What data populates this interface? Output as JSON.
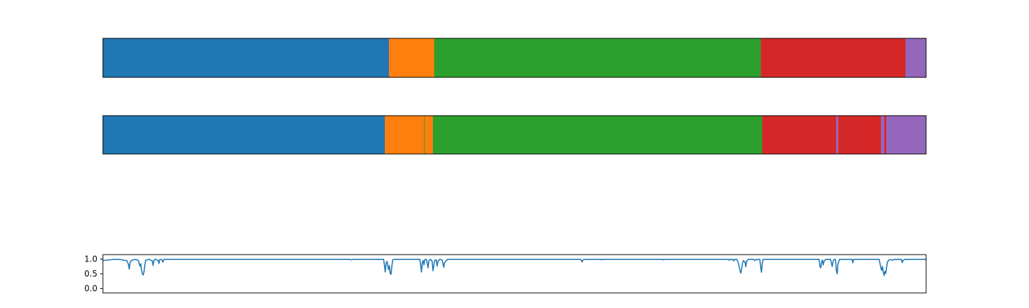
{
  "chart_data": [
    {
      "type": "bar",
      "orientation": "horizontal-stacked",
      "title": "",
      "xlabel": "",
      "ylabel": "",
      "axes_ticks": false,
      "xlim": [
        0,
        1
      ],
      "segments": [
        {
          "label_id": 0,
          "start": 0.0,
          "end": 0.3475,
          "color": "#1f77b4"
        },
        {
          "label_id": 1,
          "start": 0.3475,
          "end": 0.4025,
          "color": "#ff7f0e"
        },
        {
          "label_id": 2,
          "start": 0.4025,
          "end": 0.7992,
          "color": "#2ca02c"
        },
        {
          "label_id": 3,
          "start": 0.7992,
          "end": 0.975,
          "color": "#d62728"
        },
        {
          "label_id": 4,
          "start": 0.975,
          "end": 1.0,
          "color": "#9467bd"
        }
      ]
    },
    {
      "type": "bar",
      "orientation": "horizontal-stacked",
      "title": "",
      "xlabel": "",
      "ylabel": "",
      "axes_ticks": false,
      "xlim": [
        0,
        1
      ],
      "segments": [
        {
          "label_id": 0,
          "start": 0.0,
          "end": 0.3425,
          "color": "#1f77b4"
        },
        {
          "label_id": 1,
          "start": 0.3425,
          "end": 0.39,
          "color": "#ff7f0e"
        },
        {
          "label_id": 2,
          "start": 0.39,
          "end": 0.3908,
          "color": "#2ca02c"
        },
        {
          "label_id": 1,
          "start": 0.3908,
          "end": 0.4008,
          "color": "#ff7f0e"
        },
        {
          "label_id": 2,
          "start": 0.4008,
          "end": 0.8008,
          "color": "#2ca02c"
        },
        {
          "label_id": 3,
          "start": 0.8008,
          "end": 0.8908,
          "color": "#d62728"
        },
        {
          "label_id": 4,
          "start": 0.8908,
          "end": 0.8933,
          "color": "#9467bd"
        },
        {
          "label_id": 3,
          "start": 0.8933,
          "end": 0.945,
          "color": "#d62728"
        },
        {
          "label_id": 4,
          "start": 0.945,
          "end": 0.9492,
          "color": "#9467bd"
        },
        {
          "label_id": 3,
          "start": 0.9492,
          "end": 0.9517,
          "color": "#d62728"
        },
        {
          "label_id": 4,
          "start": 0.9517,
          "end": 1.0,
          "color": "#9467bd"
        }
      ]
    },
    {
      "type": "line",
      "title": "",
      "xlabel": "",
      "ylabel": "",
      "x_ticks": false,
      "xlim": [
        0,
        1
      ],
      "ylim": [
        -0.15,
        1.15
      ],
      "y_ticks": [
        0.0,
        0.5,
        1.0
      ],
      "y_tick_labels": [
        "0.0",
        "0.5",
        "1.0"
      ],
      "series": [
        {
          "color": "#1f77b4",
          "baseline": 0.99,
          "points": [
            [
              0.0,
              0.95
            ],
            [
              0.004,
              0.96
            ],
            [
              0.008,
              0.97
            ],
            [
              0.013,
              0.99
            ],
            [
              0.02,
              0.99
            ],
            [
              0.025,
              0.96
            ],
            [
              0.029,
              0.95
            ],
            [
              0.031,
              0.82
            ],
            [
              0.032,
              0.66
            ],
            [
              0.033,
              0.88
            ],
            [
              0.035,
              0.96
            ],
            [
              0.04,
              0.99
            ],
            [
              0.043,
              0.95
            ],
            [
              0.045,
              0.76
            ],
            [
              0.046,
              0.84
            ],
            [
              0.047,
              0.62
            ],
            [
              0.048,
              0.5
            ],
            [
              0.049,
              0.46
            ],
            [
              0.05,
              0.58
            ],
            [
              0.051,
              0.82
            ],
            [
              0.052,
              0.96
            ],
            [
              0.056,
              0.99
            ],
            [
              0.06,
              0.94
            ],
            [
              0.061,
              0.78
            ],
            [
              0.062,
              0.96
            ],
            [
              0.064,
              0.99
            ],
            [
              0.067,
              0.95
            ],
            [
              0.068,
              0.85
            ],
            [
              0.069,
              0.98
            ],
            [
              0.071,
              0.99
            ],
            [
              0.073,
              0.9
            ],
            [
              0.074,
              0.99
            ],
            [
              0.3,
              0.99
            ],
            [
              0.302,
              0.97
            ],
            [
              0.304,
              0.99
            ],
            [
              0.341,
              0.99
            ],
            [
              0.342,
              0.8
            ],
            [
              0.343,
              0.56
            ],
            [
              0.344,
              0.85
            ],
            [
              0.345,
              0.92
            ],
            [
              0.346,
              0.8
            ],
            [
              0.347,
              0.64
            ],
            [
              0.348,
              0.78
            ],
            [
              0.349,
              0.52
            ],
            [
              0.35,
              0.48
            ],
            [
              0.351,
              0.75
            ],
            [
              0.352,
              0.97
            ],
            [
              0.354,
              0.99
            ],
            [
              0.385,
              0.99
            ],
            [
              0.386,
              0.8
            ],
            [
              0.387,
              0.56
            ],
            [
              0.388,
              0.87
            ],
            [
              0.389,
              0.95
            ],
            [
              0.39,
              0.8
            ],
            [
              0.391,
              0.98
            ],
            [
              0.393,
              0.99
            ],
            [
              0.394,
              0.85
            ],
            [
              0.395,
              0.7
            ],
            [
              0.396,
              0.95
            ],
            [
              0.398,
              0.99
            ],
            [
              0.4,
              0.92
            ],
            [
              0.401,
              0.6
            ],
            [
              0.402,
              0.78
            ],
            [
              0.403,
              0.96
            ],
            [
              0.405,
              0.97
            ],
            [
              0.406,
              0.76
            ],
            [
              0.407,
              0.92
            ],
            [
              0.409,
              0.99
            ],
            [
              0.412,
              0.97
            ],
            [
              0.413,
              0.86
            ],
            [
              0.414,
              0.72
            ],
            [
              0.415,
              0.88
            ],
            [
              0.417,
              0.94
            ],
            [
              0.419,
              0.99
            ],
            [
              0.43,
              0.99
            ],
            [
              0.58,
              0.99
            ],
            [
              0.581,
              0.97
            ],
            [
              0.582,
              0.9
            ],
            [
              0.583,
              0.96
            ],
            [
              0.585,
              0.99
            ],
            [
              0.605,
              0.99
            ],
            [
              0.606,
              0.97
            ],
            [
              0.607,
              0.99
            ],
            [
              0.68,
              0.99
            ],
            [
              0.681,
              0.97
            ],
            [
              0.682,
              0.99
            ],
            [
              0.76,
              0.99
            ],
            [
              0.761,
              0.96
            ],
            [
              0.762,
              0.99
            ],
            [
              0.765,
              0.99
            ],
            [
              0.766,
              0.94
            ],
            [
              0.767,
              0.99
            ],
            [
              0.767,
              0.99
            ],
            [
              0.768,
              0.97
            ],
            [
              0.769,
              0.99
            ],
            [
              0.77,
              0.99
            ],
            [
              0.771,
              0.93
            ],
            [
              0.772,
              0.86
            ],
            [
              0.773,
              0.72
            ],
            [
              0.774,
              0.6
            ],
            [
              0.775,
              0.52
            ],
            [
              0.776,
              0.68
            ],
            [
              0.777,
              0.86
            ],
            [
              0.778,
              0.95
            ],
            [
              0.78,
              0.9
            ],
            [
              0.781,
              0.74
            ],
            [
              0.782,
              0.93
            ],
            [
              0.784,
              0.99
            ],
            [
              0.79,
              0.99
            ],
            [
              0.792,
              0.95
            ],
            [
              0.793,
              0.99
            ],
            [
              0.795,
              0.97
            ],
            [
              0.796,
              0.99
            ],
            [
              0.798,
              0.99
            ],
            [
              0.799,
              0.75
            ],
            [
              0.8,
              0.55
            ],
            [
              0.801,
              0.85
            ],
            [
              0.802,
              0.99
            ],
            [
              0.87,
              0.99
            ],
            [
              0.871,
              0.75
            ],
            [
              0.872,
              0.7
            ],
            [
              0.873,
              0.88
            ],
            [
              0.874,
              0.97
            ],
            [
              0.875,
              0.8
            ],
            [
              0.876,
              0.92
            ],
            [
              0.878,
              0.99
            ],
            [
              0.884,
              0.99
            ],
            [
              0.885,
              0.85
            ],
            [
              0.886,
              0.75
            ],
            [
              0.887,
              0.92
            ],
            [
              0.888,
              0.99
            ],
            [
              0.89,
              0.98
            ],
            [
              0.891,
              0.6
            ],
            [
              0.892,
              0.5
            ],
            [
              0.893,
              0.85
            ],
            [
              0.895,
              0.99
            ],
            [
              0.91,
              0.99
            ],
            [
              0.911,
              0.87
            ],
            [
              0.912,
              0.99
            ],
            [
              0.943,
              0.99
            ],
            [
              0.944,
              0.85
            ],
            [
              0.945,
              0.7
            ],
            [
              0.946,
              0.62
            ],
            [
              0.947,
              0.75
            ],
            [
              0.948,
              0.55
            ],
            [
              0.949,
              0.44
            ],
            [
              0.95,
              0.58
            ],
            [
              0.951,
              0.52
            ],
            [
              0.952,
              0.72
            ],
            [
              0.953,
              0.9
            ],
            [
              0.955,
              0.97
            ],
            [
              0.957,
              0.98
            ],
            [
              0.959,
              0.96
            ],
            [
              0.962,
              0.99
            ],
            [
              0.97,
              0.99
            ],
            [
              0.971,
              0.88
            ],
            [
              0.972,
              0.95
            ],
            [
              0.974,
              0.99
            ],
            [
              1.0,
              0.99
            ]
          ]
        }
      ]
    }
  ]
}
